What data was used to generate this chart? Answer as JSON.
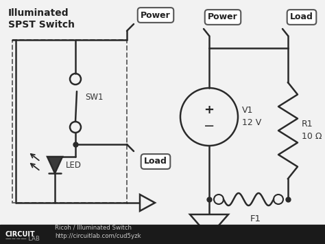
{
  "bg_color": "#f2f2f2",
  "footer_color": "#1a1a1a",
  "line_color": "#2a2a2a",
  "title": "Illuminated\nSPST Switch",
  "label_Power_left": "Power",
  "label_Load_left": "Load",
  "label_SW1": "SW1",
  "label_LED": "LED",
  "label_Power_right": "Power",
  "label_Load_right": "Load",
  "label_V1": "V1\n12 V",
  "label_R1": "R1\n10 Ω",
  "label_F1": "F1",
  "footer_left": "CIRCUIT",
  "footer_left2": "—∼∼— LAB",
  "footer_right": "Ricoh / Illuminated Switch\nhttp://circuitlab.com/cud5yzk"
}
